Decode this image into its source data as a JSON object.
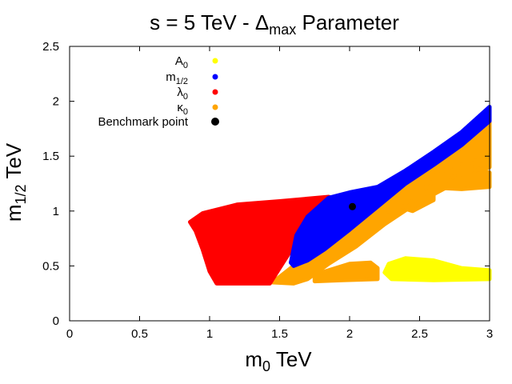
{
  "chart_data": {
    "type": "scatter",
    "title": {
      "main": "s = 5 TeV - ",
      "delta": "Δ",
      "delta_sub": "max",
      "tail": " Parameter"
    },
    "xlabel": {
      "main": "m",
      "sub": "0",
      "unit": " TeV"
    },
    "ylabel": {
      "main": "m",
      "sub": "1/2",
      "unit": " TeV"
    },
    "xlim": [
      0,
      3
    ],
    "ylim": [
      0,
      2.5
    ],
    "xticks": [
      0,
      0.5,
      1,
      1.5,
      2,
      2.5,
      3
    ],
    "yticks": [
      0,
      0.5,
      1,
      1.5,
      2,
      2.5
    ],
    "xtick_labels": [
      "0",
      "0.5",
      "1",
      "1.5",
      "2",
      "2.5",
      "3"
    ],
    "ytick_labels": [
      "0",
      "0.5",
      "1",
      "1.5",
      "2",
      "2.5"
    ],
    "legend_position": "top-left",
    "legend": [
      {
        "label": "A",
        "sub": "0",
        "color": "#ffff00",
        "kind": "dot"
      },
      {
        "label": "m",
        "sub": "1/2",
        "color": "#0000ff",
        "kind": "dot"
      },
      {
        "label": "λ",
        "sub": "0",
        "color": "#ff0000",
        "kind": "dot"
      },
      {
        "label": "κ",
        "sub": "0",
        "color": "#ffa500",
        "kind": "dot"
      },
      {
        "label": "Benchmark point",
        "sub": "",
        "color": "#000000",
        "kind": "big"
      }
    ],
    "series": [
      {
        "name": "A0",
        "color": "#ffff00",
        "regions": [
          [
            [
              2.28,
              0.52
            ],
            [
              2.4,
              0.57
            ],
            [
              2.6,
              0.55
            ],
            [
              2.8,
              0.48
            ],
            [
              3.0,
              0.46
            ],
            [
              3.0,
              0.38
            ],
            [
              2.6,
              0.37
            ],
            [
              2.3,
              0.38
            ],
            [
              2.25,
              0.44
            ]
          ]
        ]
      },
      {
        "name": "kappa0",
        "color": "#ffa500",
        "regions": [
          [
            [
              1.45,
              0.35
            ],
            [
              1.6,
              0.5
            ],
            [
              1.75,
              0.75
            ],
            [
              1.95,
              0.98
            ],
            [
              2.15,
              1.12
            ],
            [
              2.4,
              1.35
            ],
            [
              2.7,
              1.6
            ],
            [
              3.0,
              1.85
            ],
            [
              3.0,
              1.4
            ],
            [
              2.7,
              1.22
            ],
            [
              2.45,
              1.05
            ],
            [
              2.25,
              0.88
            ],
            [
              2.05,
              0.68
            ],
            [
              1.85,
              0.52
            ],
            [
              1.7,
              0.38
            ],
            [
              1.6,
              0.34
            ]
          ],
          [
            [
              1.75,
              0.42
            ],
            [
              1.85,
              0.46
            ],
            [
              2.0,
              0.52
            ],
            [
              2.15,
              0.53
            ],
            [
              2.2,
              0.48
            ],
            [
              2.2,
              0.38
            ],
            [
              1.95,
              0.37
            ],
            [
              1.75,
              0.36
            ]
          ],
          [
            [
              2.5,
              1.3
            ],
            [
              2.6,
              1.36
            ],
            [
              2.8,
              1.4
            ],
            [
              3.0,
              1.35
            ],
            [
              3.0,
              1.22
            ],
            [
              2.8,
              1.2
            ],
            [
              2.5,
              1.22
            ]
          ],
          [
            [
              2.4,
              1.02
            ],
            [
              2.5,
              1.14
            ],
            [
              2.6,
              1.2
            ],
            [
              2.6,
              1.1
            ],
            [
              2.45,
              1.0
            ]
          ]
        ],
        "scatter": [
          [
            2.0,
            1.02
          ],
          [
            2.22,
            0.98
          ],
          [
            2.28,
            1.0
          ],
          [
            2.38,
            1.04
          ],
          [
            2.55,
            1.08
          ],
          [
            2.62,
            1.2
          ],
          [
            2.7,
            1.28
          ],
          [
            2.78,
            1.32
          ],
          [
            2.86,
            1.36
          ],
          [
            2.94,
            1.42
          ],
          [
            2.5,
            1.3
          ],
          [
            2.85,
            1.45
          ],
          [
            2.9,
            1.5
          ],
          [
            2.96,
            1.45
          ],
          [
            2.66,
            1.36
          ],
          [
            2.58,
            1.26
          ],
          [
            2.18,
            1.02
          ],
          [
            2.3,
            1.06
          ],
          [
            2.42,
            1.1
          ],
          [
            2.72,
            1.4
          ],
          [
            2.8,
            1.46
          ],
          [
            2.92,
            1.38
          ],
          [
            2.74,
            1.31
          ],
          [
            2.88,
            1.43
          ]
        ]
      },
      {
        "name": "lambda0",
        "color": "#ff0000",
        "regions": [
          [
            [
              0.86,
              0.9
            ],
            [
              0.95,
              0.98
            ],
            [
              1.2,
              1.06
            ],
            [
              1.5,
              1.09
            ],
            [
              1.85,
              1.13
            ],
            [
              1.88,
              1.12
            ],
            [
              1.78,
              0.98
            ],
            [
              1.62,
              0.72
            ],
            [
              1.5,
              0.48
            ],
            [
              1.43,
              0.34
            ],
            [
              1.05,
              0.34
            ],
            [
              1.0,
              0.45
            ],
            [
              0.95,
              0.65
            ],
            [
              0.9,
              0.82
            ]
          ]
        ]
      },
      {
        "name": "m12",
        "color": "#0000ff",
        "regions": [
          [
            [
              1.58,
              0.53
            ],
            [
              1.62,
              0.78
            ],
            [
              1.7,
              0.95
            ],
            [
              1.85,
              1.12
            ],
            [
              2.0,
              1.17
            ],
            [
              2.2,
              1.22
            ],
            [
              2.4,
              1.37
            ],
            [
              2.6,
              1.54
            ],
            [
              2.8,
              1.72
            ],
            [
              3.0,
              1.95
            ],
            [
              3.0,
              1.82
            ],
            [
              2.8,
              1.6
            ],
            [
              2.6,
              1.42
            ],
            [
              2.4,
              1.25
            ],
            [
              2.2,
              1.04
            ],
            [
              2.0,
              0.83
            ],
            [
              1.82,
              0.65
            ],
            [
              1.7,
              0.55
            ],
            [
              1.6,
              0.5
            ]
          ]
        ]
      }
    ],
    "benchmark": {
      "x": 2.02,
      "y": 1.04,
      "color": "#000000"
    }
  }
}
